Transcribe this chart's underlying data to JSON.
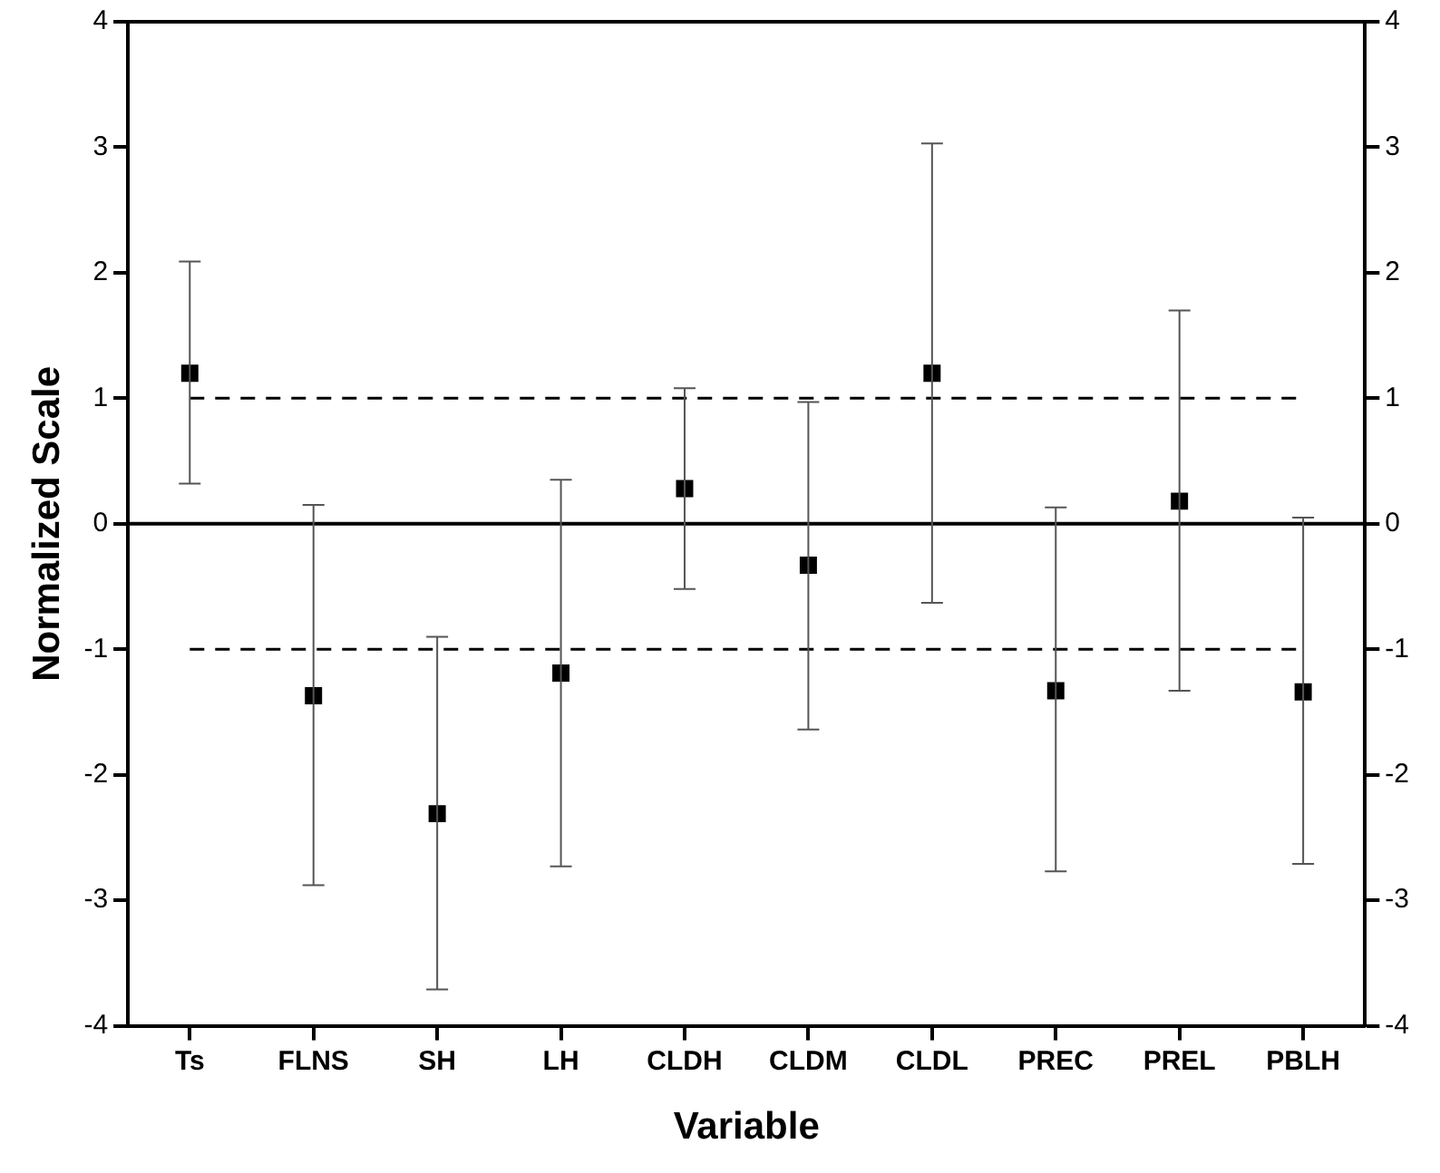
{
  "chart_data": {
    "type": "scatter",
    "xlabel": "Variable",
    "ylabel": "Normalized Scale",
    "categories": [
      "Ts",
      "FLNS",
      "SH",
      "LH",
      "CLDH",
      "CLDM",
      "CLDL",
      "PREC",
      "PREL",
      "PBLH"
    ],
    "series": [
      {
        "color": "#000000",
        "values": [
          1.2,
          -1.37,
          -2.31,
          -1.19,
          0.28,
          -0.33,
          1.2,
          -1.33,
          0.18,
          -1.34
        ],
        "errors": [
          [
            0.32,
            2.09
          ],
          [
            -2.88,
            0.15
          ],
          [
            -3.71,
            -0.9
          ],
          [
            -2.73,
            0.35
          ],
          [
            -0.52,
            1.08
          ],
          [
            -1.64,
            0.97
          ],
          [
            -0.63,
            3.03
          ],
          [
            -2.77,
            0.13
          ],
          [
            -1.33,
            1.7
          ],
          [
            -2.71,
            0.05
          ]
        ]
      }
    ],
    "marker": "square",
    "ylim": [
      -4,
      4
    ],
    "yticks": [
      -4,
      -3,
      -2,
      -1,
      0,
      1,
      2,
      3,
      4
    ],
    "y2lim": [
      -4,
      4
    ],
    "y2ticks": [
      -4,
      -3,
      -2,
      -1,
      0,
      1,
      2,
      3,
      4
    ],
    "ref_lines": [
      {
        "axis": "y",
        "value": 0,
        "line_style": "solid"
      },
      {
        "axis": "y",
        "value": 1,
        "line_style": "dashed"
      },
      {
        "axis": "y",
        "value": -1,
        "line_style": "dashed"
      }
    ],
    "grid": false,
    "legend": false
  }
}
